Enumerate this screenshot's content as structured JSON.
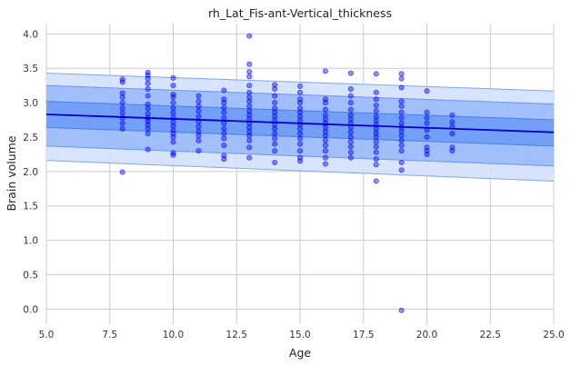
{
  "chart_data": {
    "type": "scatter",
    "title": "rh_Lat_Fis-ant-Vertical_thickness",
    "xlabel": "Age",
    "ylabel": "Brain volume",
    "xlim": [
      5.0,
      25.0
    ],
    "ylim": [
      -0.22,
      4.15
    ],
    "xticks": [
      "5.0",
      "7.5",
      "10.0",
      "12.5",
      "15.0",
      "17.5",
      "20.0",
      "22.5",
      "25.0"
    ],
    "yticks": [
      "0.0",
      "0.5",
      "1.0",
      "1.5",
      "2.0",
      "2.5",
      "3.0",
      "3.5",
      "4.0"
    ],
    "grid": true,
    "colors": {
      "points": "#0000ff",
      "fit_line": "#0000cc",
      "band_inner": "#5b8ff5",
      "band_middle": "#8fb3fa",
      "band_outer": "#d3e1fc"
    },
    "fit_line": {
      "x": [
        5,
        25
      ],
      "y": [
        2.83,
        2.57
      ]
    },
    "bands": [
      {
        "level": "outer",
        "x": [
          5,
          25
        ],
        "lower": [
          2.16,
          1.86
        ],
        "upper": [
          3.43,
          3.17
        ]
      },
      {
        "level": "middle",
        "x": [
          5,
          25
        ],
        "lower": [
          2.37,
          2.08
        ],
        "upper": [
          3.25,
          2.98
        ]
      },
      {
        "level": "inner",
        "x": [
          5,
          25
        ],
        "lower": [
          2.64,
          2.37
        ],
        "upper": [
          3.02,
          2.75
        ]
      }
    ],
    "points": [
      [
        8,
        1.99
      ],
      [
        8,
        2.62
      ],
      [
        8,
        2.7
      ],
      [
        8,
        2.78
      ],
      [
        8,
        2.85
      ],
      [
        8,
        2.92
      ],
      [
        8,
        3.0
      ],
      [
        8,
        3.08
      ],
      [
        8,
        3.14
      ],
      [
        8,
        3.3
      ],
      [
        8,
        3.34
      ],
      [
        9,
        2.32
      ],
      [
        9,
        2.55
      ],
      [
        9,
        2.62
      ],
      [
        9,
        2.68
      ],
      [
        9,
        2.73
      ],
      [
        9,
        2.78
      ],
      [
        9,
        2.84
      ],
      [
        9,
        2.92
      ],
      [
        9,
        2.98
      ],
      [
        9,
        3.1
      ],
      [
        9,
        3.2
      ],
      [
        9,
        3.28
      ],
      [
        9,
        3.35
      ],
      [
        9,
        3.4
      ],
      [
        9,
        3.44
      ],
      [
        10,
        2.24
      ],
      [
        10,
        2.27
      ],
      [
        10,
        2.43
      ],
      [
        10,
        2.5
      ],
      [
        10,
        2.55
      ],
      [
        10,
        2.6
      ],
      [
        10,
        2.66
      ],
      [
        10,
        2.72
      ],
      [
        10,
        2.78
      ],
      [
        10,
        2.85
      ],
      [
        10,
        2.92
      ],
      [
        10,
        3.0
      ],
      [
        10,
        3.08
      ],
      [
        10,
        3.12
      ],
      [
        10,
        3.25
      ],
      [
        10,
        3.36
      ],
      [
        11,
        2.3
      ],
      [
        11,
        2.45
      ],
      [
        11,
        2.52
      ],
      [
        11,
        2.58
      ],
      [
        11,
        2.65
      ],
      [
        11,
        2.72
      ],
      [
        11,
        2.8
      ],
      [
        11,
        2.88
      ],
      [
        11,
        2.95
      ],
      [
        11,
        3.02
      ],
      [
        11,
        3.1
      ],
      [
        12,
        2.18
      ],
      [
        12,
        2.23
      ],
      [
        12,
        2.38
      ],
      [
        12,
        2.48
      ],
      [
        12,
        2.55
      ],
      [
        12,
        2.62
      ],
      [
        12,
        2.7
      ],
      [
        12,
        2.78
      ],
      [
        12,
        2.86
      ],
      [
        12,
        2.93
      ],
      [
        12,
        3.0
      ],
      [
        12,
        3.05
      ],
      [
        12,
        3.18
      ],
      [
        13,
        2.2
      ],
      [
        13,
        2.35
      ],
      [
        13,
        2.45
      ],
      [
        13,
        2.52
      ],
      [
        13,
        2.58
      ],
      [
        13,
        2.64
      ],
      [
        13,
        2.7
      ],
      [
        13,
        2.76
      ],
      [
        13,
        2.82
      ],
      [
        13,
        2.88
      ],
      [
        13,
        2.95
      ],
      [
        13,
        3.02
      ],
      [
        13,
        3.08
      ],
      [
        13,
        3.15
      ],
      [
        13,
        3.25
      ],
      [
        13,
        3.38
      ],
      [
        13,
        3.45
      ],
      [
        13,
        3.56
      ],
      [
        13,
        3.97
      ],
      [
        14,
        2.13
      ],
      [
        14,
        2.3
      ],
      [
        14,
        2.4
      ],
      [
        14,
        2.48
      ],
      [
        14,
        2.55
      ],
      [
        14,
        2.62
      ],
      [
        14,
        2.68
      ],
      [
        14,
        2.74
      ],
      [
        14,
        2.8
      ],
      [
        14,
        2.86
      ],
      [
        14,
        2.92
      ],
      [
        14,
        3.0
      ],
      [
        14,
        3.1
      ],
      [
        14,
        3.2
      ],
      [
        14,
        3.26
      ],
      [
        15,
        2.15
      ],
      [
        15,
        2.2
      ],
      [
        15,
        2.3
      ],
      [
        15,
        2.4
      ],
      [
        15,
        2.48
      ],
      [
        15,
        2.55
      ],
      [
        15,
        2.62
      ],
      [
        15,
        2.68
      ],
      [
        15,
        2.74
      ],
      [
        15,
        2.8
      ],
      [
        15,
        2.86
      ],
      [
        15,
        2.92
      ],
      [
        15,
        3.0
      ],
      [
        15,
        3.05
      ],
      [
        15,
        3.15
      ],
      [
        15,
        3.24
      ],
      [
        16,
        2.11
      ],
      [
        16,
        2.2
      ],
      [
        16,
        2.3
      ],
      [
        16,
        2.38
      ],
      [
        16,
        2.45
      ],
      [
        16,
        2.52
      ],
      [
        16,
        2.58
      ],
      [
        16,
        2.64
      ],
      [
        16,
        2.7
      ],
      [
        16,
        2.76
      ],
      [
        16,
        2.82
      ],
      [
        16,
        2.9
      ],
      [
        16,
        3.0
      ],
      [
        16,
        3.05
      ],
      [
        16,
        3.46
      ],
      [
        17,
        2.2
      ],
      [
        17,
        2.28
      ],
      [
        17,
        2.36
      ],
      [
        17,
        2.43
      ],
      [
        17,
        2.5
      ],
      [
        17,
        2.57
      ],
      [
        17,
        2.64
      ],
      [
        17,
        2.7
      ],
      [
        17,
        2.76
      ],
      [
        17,
        2.82
      ],
      [
        17,
        2.9
      ],
      [
        17,
        3.0
      ],
      [
        17,
        3.1
      ],
      [
        17,
        3.2
      ],
      [
        17,
        3.43
      ],
      [
        18,
        1.86
      ],
      [
        18,
        2.1
      ],
      [
        18,
        2.18
      ],
      [
        18,
        2.28
      ],
      [
        18,
        2.36
      ],
      [
        18,
        2.43
      ],
      [
        18,
        2.5
      ],
      [
        18,
        2.56
      ],
      [
        18,
        2.62
      ],
      [
        18,
        2.68
      ],
      [
        18,
        2.74
      ],
      [
        18,
        2.8
      ],
      [
        18,
        2.88
      ],
      [
        18,
        2.96
      ],
      [
        18,
        3.05
      ],
      [
        18,
        3.15
      ],
      [
        18,
        3.42
      ],
      [
        19,
        -0.02
      ],
      [
        19,
        2.02
      ],
      [
        19,
        2.13
      ],
      [
        19,
        2.3
      ],
      [
        19,
        2.38
      ],
      [
        19,
        2.45
      ],
      [
        19,
        2.52
      ],
      [
        19,
        2.58
      ],
      [
        19,
        2.64
      ],
      [
        19,
        2.7
      ],
      [
        19,
        2.78
      ],
      [
        19,
        2.86
      ],
      [
        19,
        2.95
      ],
      [
        19,
        3.02
      ],
      [
        19,
        3.22
      ],
      [
        19,
        3.35
      ],
      [
        19,
        3.42
      ],
      [
        20,
        2.25
      ],
      [
        20,
        2.3
      ],
      [
        20,
        2.35
      ],
      [
        20,
        2.5
      ],
      [
        20,
        2.6
      ],
      [
        20,
        2.7
      ],
      [
        20,
        2.78
      ],
      [
        20,
        2.86
      ],
      [
        20,
        3.17
      ],
      [
        21,
        2.3
      ],
      [
        21,
        2.35
      ],
      [
        21,
        2.55
      ],
      [
        21,
        2.65
      ],
      [
        21,
        2.72
      ],
      [
        21,
        2.82
      ]
    ]
  }
}
